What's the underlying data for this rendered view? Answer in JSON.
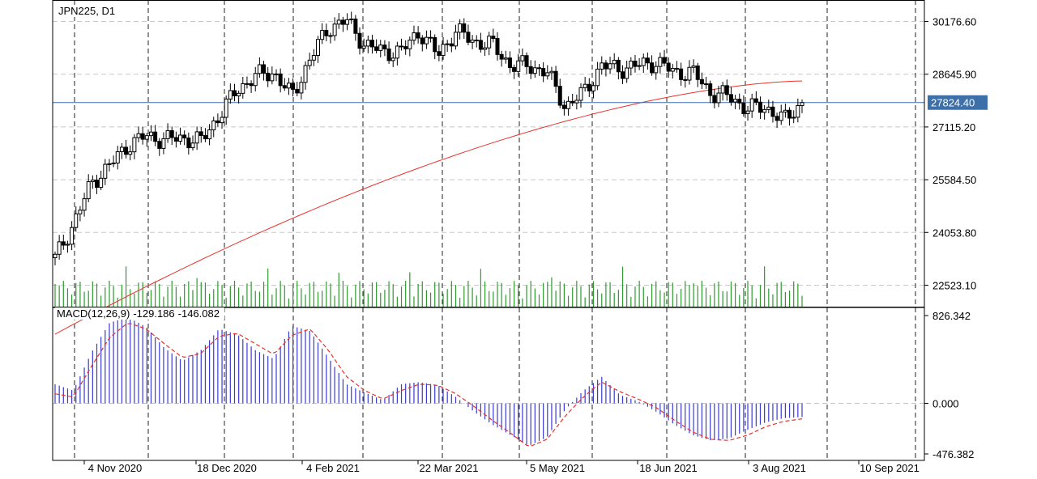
{
  "header": {
    "symbol": "JPN225, D1"
  },
  "current_price": {
    "value": 27824.4,
    "label": "27824.40",
    "color": "#3d6fa8"
  },
  "colors": {
    "bull_candle": "#ffffff",
    "bear_candle": "#000000",
    "ma_line": "#e8322c",
    "volume": "#2e9a2e",
    "macd_hist": "#3a3ad6",
    "macd_signal": "#e8322c",
    "grid": "#c8c8c8",
    "vline": "#222222"
  },
  "x_axis": {
    "labels": [
      "4 Nov 2020",
      "18 Dec 2020",
      "4 Feb 2021",
      "22 Mar 2021",
      "5 May 2021",
      "18 Jun 2021",
      "3 Aug 2021",
      "10 Sep 2021"
    ]
  },
  "price_axis": {
    "labels": [
      "30176.60",
      "28645.90",
      "27115.20",
      "25584.50",
      "24053.80",
      "22523.10"
    ]
  },
  "macd_panel": {
    "name": "MACD(12,26,9)",
    "main_value": "-129.186",
    "signal_value": "-146.082",
    "axis_labels": [
      "826.342",
      "0.000",
      "-476.382"
    ]
  },
  "chart_data": [
    {
      "type": "candlestick",
      "title": "JPN225, D1",
      "x": [
        "2020-10-26",
        "2020-11-02",
        "2020-11-09",
        "2020-11-16",
        "2020-11-23",
        "2020-11-30",
        "2020-12-07",
        "2020-12-14",
        "2020-12-21",
        "2020-12-28",
        "2021-01-04",
        "2021-01-11",
        "2021-01-18",
        "2021-01-25",
        "2021-02-01",
        "2021-02-08",
        "2021-02-15",
        "2021-02-22",
        "2021-03-01",
        "2021-03-08",
        "2021-03-15",
        "2021-03-22",
        "2021-03-29",
        "2021-04-05",
        "2021-04-12",
        "2021-04-19",
        "2021-04-26",
        "2021-05-03",
        "2021-05-10",
        "2021-05-17",
        "2021-05-24",
        "2021-05-31",
        "2021-06-07",
        "2021-06-14",
        "2021-06-21",
        "2021-06-28",
        "2021-07-05",
        "2021-07-12",
        "2021-07-19",
        "2021-07-26",
        "2021-08-02",
        "2021-08-09"
      ],
      "close": [
        23300,
        24300,
        25500,
        26000,
        26600,
        26850,
        26750,
        26800,
        26700,
        27450,
        28200,
        28600,
        28700,
        28000,
        29100,
        30000,
        30200,
        29500,
        29300,
        29300,
        29900,
        29200,
        29900,
        29600,
        29500,
        28900,
        28900,
        28700,
        27700,
        28100,
        28900,
        28800,
        28900,
        29000,
        28700,
        28700,
        28100,
        28000,
        27650,
        27700,
        27300,
        27824
      ],
      "ma200_endpoints": {
        "start": 21100,
        "end": 28450
      },
      "ylim": [
        21900,
        30800
      ],
      "current": 27824.4
    },
    {
      "type": "bar",
      "title": "MACD(12,26,9)",
      "series": [
        {
          "name": "MACD",
          "values": [
            180,
            120,
            480,
            760,
            810,
            720,
            520,
            400,
            500,
            700,
            650,
            500,
            420,
            730,
            680,
            430,
            180,
            100,
            30,
            180,
            200,
            170,
            60,
            -80,
            -200,
            -300,
            -400,
            -320,
            -60,
            120,
            250,
            80,
            20,
            -80,
            -200,
            -300,
            -350,
            -330,
            -250,
            -180,
            -140,
            -129
          ]
        },
        {
          "name": "Signal",
          "values": [
            90,
            60,
            350,
            620,
            760,
            700,
            560,
            430,
            470,
            630,
            660,
            560,
            460,
            640,
            700,
            500,
            250,
            120,
            40,
            120,
            180,
            170,
            90,
            -30,
            -160,
            -280,
            -410,
            -340,
            -120,
            60,
            200,
            110,
            40,
            -40,
            -160,
            -270,
            -340,
            -350,
            -300,
            -220,
            -170,
            -146
          ]
        }
      ],
      "ylim": [
        -476.382,
        826.342
      ]
    }
  ]
}
